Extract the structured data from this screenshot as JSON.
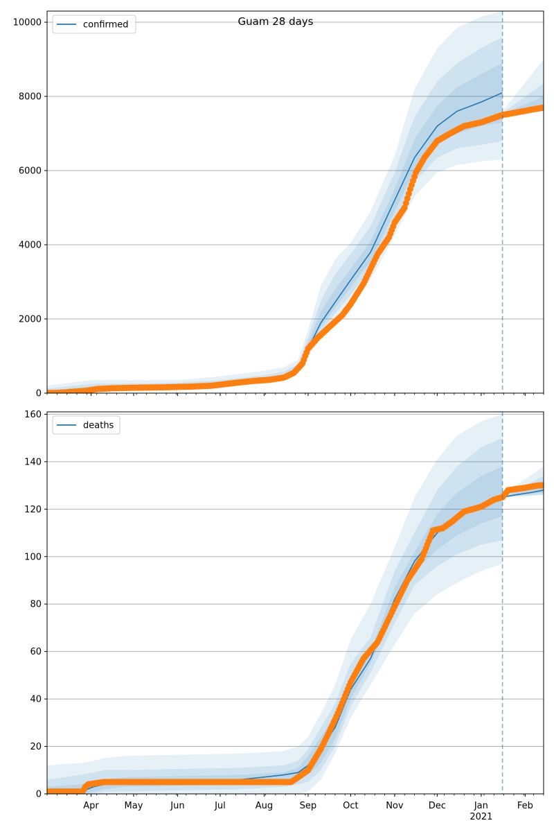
{
  "figure_title": "Guam 28 days",
  "colors": {
    "model_line": "#1f77b4",
    "band": "#1f77b4",
    "observed": "#ff7f0e",
    "grid": "#b0b0b0",
    "forecast_marker": "#1f77b4"
  },
  "x_axis": {
    "type": "date",
    "range": [
      "2020-03-01",
      "2021-02-14"
    ],
    "month_ticks": [
      {
        "date": "2020-04-01",
        "label": "Apr"
      },
      {
        "date": "2020-05-01",
        "label": "May"
      },
      {
        "date": "2020-06-01",
        "label": "Jun"
      },
      {
        "date": "2020-07-01",
        "label": "Jul"
      },
      {
        "date": "2020-08-01",
        "label": "Aug"
      },
      {
        "date": "2020-09-01",
        "label": "Sep"
      },
      {
        "date": "2020-10-01",
        "label": "Oct"
      },
      {
        "date": "2020-11-01",
        "label": "Nov"
      },
      {
        "date": "2020-12-01",
        "label": "Dec"
      },
      {
        "date": "2021-01-01",
        "label": "Jan"
      },
      {
        "date": "2021-02-01",
        "label": "Feb"
      }
    ],
    "year_label": {
      "date": "2021-01-01",
      "label": "2021"
    }
  },
  "chart_data": [
    {
      "type": "line",
      "legend": "confirmed",
      "legend_position": "upper left",
      "grid": "horizontal",
      "ylim": [
        0,
        10300
      ],
      "yticks": [
        0,
        2000,
        4000,
        6000,
        8000,
        10000
      ],
      "forecast_start": "2021-01-16",
      "model": {
        "name": "confirmed",
        "points": [
          [
            "2020-03-01",
            0
          ],
          [
            "2020-04-01",
            100
          ],
          [
            "2020-05-01",
            140
          ],
          [
            "2020-06-01",
            175
          ],
          [
            "2020-07-01",
            250
          ],
          [
            "2020-08-01",
            360
          ],
          [
            "2020-08-15",
            450
          ],
          [
            "2020-08-25",
            650
          ],
          [
            "2020-09-01",
            1200
          ],
          [
            "2020-09-10",
            1900
          ],
          [
            "2020-09-20",
            2450
          ],
          [
            "2020-10-01",
            3050
          ],
          [
            "2020-10-15",
            3800
          ],
          [
            "2020-11-01",
            5200
          ],
          [
            "2020-11-15",
            6350
          ],
          [
            "2020-12-01",
            7200
          ],
          [
            "2020-12-15",
            7600
          ],
          [
            "2021-01-01",
            7850
          ],
          [
            "2021-01-16",
            8100
          ]
        ],
        "forecast": [
          [
            "2021-01-16",
            7500
          ],
          [
            "2021-02-14",
            7730
          ]
        ],
        "bands": [
          {
            "lower": [
              0,
              60,
              110,
              140,
              200,
              300,
              380,
              560,
              1000,
              1500,
              1950,
              2400,
              3050,
              4250,
              5300,
              5950,
              6150,
              6250,
              6300
            ],
            "upper": [
              200,
              350,
              350,
              350,
              450,
              600,
              700,
              900,
              1700,
              2900,
              3600,
              4050,
              4900,
              6400,
              8200,
              9300,
              9850,
              10150,
              10300
            ],
            "forecast_lower": [
              7480,
              7600
            ],
            "forecast_upper": [
              7600,
              9000
            ]
          },
          {
            "lower": [
              0,
              80,
              120,
              155,
              220,
              320,
              410,
              600,
              1080,
              1650,
              2150,
              2650,
              3350,
              4600,
              5700,
              6350,
              6600,
              6700,
              6800
            ],
            "upper": [
              120,
              250,
              260,
              280,
              350,
              480,
              580,
              780,
              1500,
              2500,
              3200,
              3750,
              4500,
              5950,
              7450,
              8400,
              8900,
              9300,
              9600
            ],
            "forecast_lower": [
              7490,
              7650
            ],
            "forecast_upper": [
              7560,
              8350
            ]
          },
          {
            "lower": [
              0,
              90,
              130,
              165,
              235,
              340,
              430,
              630,
              1140,
              1780,
              2300,
              2850,
              3550,
              4900,
              6000,
              6700,
              7000,
              7200,
              7300
            ],
            "upper": [
              60,
              180,
              200,
              215,
              300,
              420,
              500,
              720,
              1350,
              2200,
              2800,
              3350,
              4100,
              5500,
              6850,
              7750,
              8250,
              8600,
              8900
            ],
            "forecast_lower": [
              7495,
              7690
            ],
            "forecast_upper": [
              7530,
              8000
            ]
          }
        ]
      },
      "observed": {
        "name": "observed confirmed",
        "points": [
          [
            "2020-03-01",
            3
          ],
          [
            "2020-03-10",
            10
          ],
          [
            "2020-03-20",
            40
          ],
          [
            "2020-03-28",
            60
          ],
          [
            "2020-04-05",
            110
          ],
          [
            "2020-04-15",
            130
          ],
          [
            "2020-05-01",
            145
          ],
          [
            "2020-05-20",
            155
          ],
          [
            "2020-06-10",
            175
          ],
          [
            "2020-06-25",
            200
          ],
          [
            "2020-07-10",
            270
          ],
          [
            "2020-07-25",
            330
          ],
          [
            "2020-08-05",
            360
          ],
          [
            "2020-08-15",
            420
          ],
          [
            "2020-08-22",
            550
          ],
          [
            "2020-08-28",
            800
          ],
          [
            "2020-09-01",
            1200
          ],
          [
            "2020-09-08",
            1500
          ],
          [
            "2020-09-15",
            1750
          ],
          [
            "2020-09-25",
            2100
          ],
          [
            "2020-10-01",
            2400
          ],
          [
            "2020-10-10",
            2950
          ],
          [
            "2020-10-20",
            3750
          ],
          [
            "2020-10-28",
            4200
          ],
          [
            "2020-11-01",
            4600
          ],
          [
            "2020-11-08",
            5000
          ],
          [
            "2020-11-12",
            5500
          ],
          [
            "2020-11-16",
            5950
          ],
          [
            "2020-11-22",
            6350
          ],
          [
            "2020-12-01",
            6800
          ],
          [
            "2020-12-10",
            7000
          ],
          [
            "2020-12-20",
            7200
          ],
          [
            "2021-01-01",
            7300
          ],
          [
            "2021-01-16",
            7500
          ],
          [
            "2021-01-25",
            7560
          ],
          [
            "2021-02-05",
            7640
          ],
          [
            "2021-02-14",
            7700
          ]
        ]
      }
    },
    {
      "type": "line",
      "legend": "deaths",
      "legend_position": "upper left",
      "grid": "horizontal",
      "ylim": [
        0,
        161
      ],
      "yticks": [
        0,
        20,
        40,
        60,
        80,
        100,
        120,
        140,
        160
      ],
      "forecast_start": "2021-01-16",
      "model": {
        "name": "deaths",
        "points": [
          [
            "2020-03-01",
            0
          ],
          [
            "2020-03-25",
            1
          ],
          [
            "2020-04-03",
            3
          ],
          [
            "2020-04-10",
            4
          ],
          [
            "2020-04-25",
            5
          ],
          [
            "2020-07-15",
            6
          ],
          [
            "2020-08-15",
            8
          ],
          [
            "2020-08-25",
            9
          ],
          [
            "2020-09-01",
            12
          ],
          [
            "2020-09-10",
            19
          ],
          [
            "2020-09-20",
            28
          ],
          [
            "2020-10-01",
            44
          ],
          [
            "2020-10-15",
            57
          ],
          [
            "2020-11-01",
            82
          ],
          [
            "2020-11-15",
            98
          ],
          [
            "2020-12-01",
            110
          ],
          [
            "2020-12-15",
            117
          ],
          [
            "2021-01-01",
            122
          ],
          [
            "2021-01-16",
            125
          ]
        ],
        "forecast": [
          [
            "2021-01-16",
            125
          ],
          [
            "2021-01-25",
            126
          ],
          [
            "2021-02-05",
            127
          ],
          [
            "2021-02-14",
            128
          ]
        ],
        "bands": [
          {
            "lower": [
              0,
              0,
              0,
              0,
              0,
              0,
              0,
              0,
              1,
              6,
              17,
              32,
              46,
              63,
              76,
              84,
              89,
              94,
              97
            ],
            "upper": [
              12,
              13,
              14,
              15,
              16,
              17,
              18,
              20,
              24,
              34,
              46,
              65,
              80,
              104,
              125,
              141,
              151,
              157,
              160
            ],
            "forecast_lower": [
              125,
              126
            ],
            "forecast_upper": [
              126,
              138
            ]
          },
          {
            "lower": [
              0,
              0,
              0,
              1,
              1,
              2,
              3,
              4,
              5,
              10,
              20,
              37,
              51,
              72,
              88,
              96,
              101,
              105,
              107
            ],
            "upper": [
              6,
              8,
              9,
              10,
              10,
              11,
              12,
              14,
              19,
              28,
              38,
              55,
              66,
              94,
              110,
              128,
              138,
              146,
              150
            ],
            "forecast_lower": [
              125,
              126
            ],
            "forecast_upper": [
              125,
              134
            ]
          },
          {
            "lower": [
              0,
              0,
              1,
              2,
              3,
              4,
              5,
              6,
              8,
              13,
              23,
              40,
              55,
              78,
              94,
              103,
              109,
              114,
              117
            ],
            "upper": [
              3,
              4,
              5,
              6,
              7,
              8,
              9,
              11,
              16,
              24,
              33,
              48,
              60,
              87,
              102,
              118,
              127,
              134,
              138
            ],
            "forecast_lower": [
              125,
              127
            ],
            "forecast_upper": [
              125,
              132
            ]
          }
        ]
      },
      "observed": {
        "name": "observed deaths",
        "points": [
          [
            "2020-03-01",
            1
          ],
          [
            "2020-03-26",
            1
          ],
          [
            "2020-03-28",
            3
          ],
          [
            "2020-03-30",
            4
          ],
          [
            "2020-04-10",
            5
          ],
          [
            "2020-08-20",
            5
          ],
          [
            "2020-08-25",
            7
          ],
          [
            "2020-09-01",
            10
          ],
          [
            "2020-09-05",
            14
          ],
          [
            "2020-09-10",
            19
          ],
          [
            "2020-09-15",
            25
          ],
          [
            "2020-09-22",
            34
          ],
          [
            "2020-10-01",
            47
          ],
          [
            "2020-10-10",
            57
          ],
          [
            "2020-10-20",
            64
          ],
          [
            "2020-11-01",
            79
          ],
          [
            "2020-11-10",
            90
          ],
          [
            "2020-11-20",
            99
          ],
          [
            "2020-11-28",
            111
          ],
          [
            "2020-12-05",
            112
          ],
          [
            "2020-12-12",
            115
          ],
          [
            "2020-12-20",
            119
          ],
          [
            "2021-01-01",
            121
          ],
          [
            "2021-01-10",
            124
          ],
          [
            "2021-01-16",
            125
          ],
          [
            "2021-01-20",
            128
          ],
          [
            "2021-02-01",
            129
          ],
          [
            "2021-02-10",
            130
          ],
          [
            "2021-02-14",
            130
          ]
        ]
      }
    }
  ]
}
